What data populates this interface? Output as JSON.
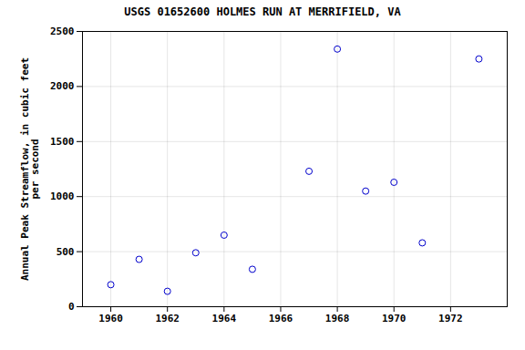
{
  "chart_data": {
    "type": "scatter",
    "title": "USGS 01652600 HOLMES RUN AT MERRIFIELD, VA",
    "ylabel": "Annual Peak Streamflow, in cubic feet\nper second",
    "x": [
      1960,
      1961,
      1962,
      1963,
      1964,
      1965,
      1967,
      1968,
      1969,
      1970,
      1971,
      1973
    ],
    "values": [
      200,
      430,
      140,
      490,
      650,
      340,
      1230,
      2340,
      1050,
      1130,
      580,
      2250
    ],
    "color": "#0000cc",
    "marker": "circle",
    "xlim": [
      1959,
      1974
    ],
    "ylim": [
      0,
      2500
    ],
    "xticks": [
      1960,
      1962,
      1964,
      1966,
      1968,
      1970,
      1972
    ],
    "yticks": [
      0,
      500,
      1000,
      1500,
      2000,
      2500
    ],
    "grid": true
  }
}
